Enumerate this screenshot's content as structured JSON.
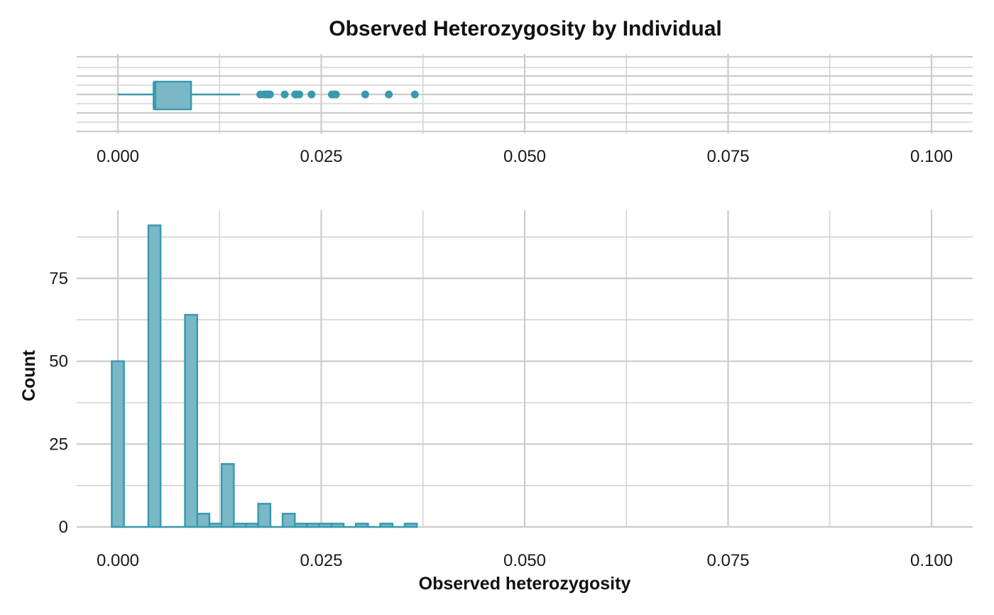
{
  "chart_data": [
    {
      "type": "boxplot",
      "title": "Observed Heterozygosity by Individual",
      "xlim": [
        0,
        0.1
      ],
      "x_ticks": [
        "0.000",
        "0.025",
        "0.050",
        "0.075",
        "0.100"
      ],
      "box": {
        "whisker_low": 0.0,
        "q1": 0.0045,
        "median": 0.0045,
        "q3": 0.009,
        "whisker_high": 0.015
      },
      "outliers": [
        0.0175,
        0.018,
        0.0183,
        0.0185,
        0.0187,
        0.0205,
        0.0218,
        0.022,
        0.0223,
        0.0238,
        0.0263,
        0.0266,
        0.0268,
        0.0304,
        0.0333,
        0.0365
      ],
      "grid": true,
      "colors": {
        "fill": "#7ab8c8",
        "stroke": "#3a9aad",
        "grid": "#cccccc"
      }
    },
    {
      "type": "bar",
      "xlabel": "Observed heterozygosity",
      "ylabel": "Count",
      "xlim": [
        0,
        0.1
      ],
      "ylim": [
        0,
        93
      ],
      "x_ticks": [
        "0.000",
        "0.025",
        "0.050",
        "0.075",
        "0.100"
      ],
      "y_ticks": [
        "0",
        "25",
        "50",
        "75"
      ],
      "bin_width": 0.0015,
      "bins": [
        {
          "x": 0.0,
          "count": 50
        },
        {
          "x": 0.0015,
          "count": 0
        },
        {
          "x": 0.003,
          "count": 0
        },
        {
          "x": 0.0045,
          "count": 91
        },
        {
          "x": 0.006,
          "count": 0
        },
        {
          "x": 0.0075,
          "count": 0
        },
        {
          "x": 0.009,
          "count": 64
        },
        {
          "x": 0.0105,
          "count": 4
        },
        {
          "x": 0.012,
          "count": 1
        },
        {
          "x": 0.0135,
          "count": 19
        },
        {
          "x": 0.015,
          "count": 1
        },
        {
          "x": 0.0165,
          "count": 1
        },
        {
          "x": 0.018,
          "count": 7
        },
        {
          "x": 0.0195,
          "count": 0
        },
        {
          "x": 0.021,
          "count": 4
        },
        {
          "x": 0.0225,
          "count": 1
        },
        {
          "x": 0.024,
          "count": 1
        },
        {
          "x": 0.0255,
          "count": 1
        },
        {
          "x": 0.027,
          "count": 1
        },
        {
          "x": 0.0285,
          "count": 0
        },
        {
          "x": 0.03,
          "count": 1
        },
        {
          "x": 0.0315,
          "count": 0
        },
        {
          "x": 0.033,
          "count": 1
        },
        {
          "x": 0.0345,
          "count": 0
        },
        {
          "x": 0.036,
          "count": 1
        }
      ],
      "grid": true,
      "colors": {
        "fill": "#7ab8c8",
        "stroke": "#3a9aad",
        "grid": "#cccccc"
      }
    }
  ]
}
